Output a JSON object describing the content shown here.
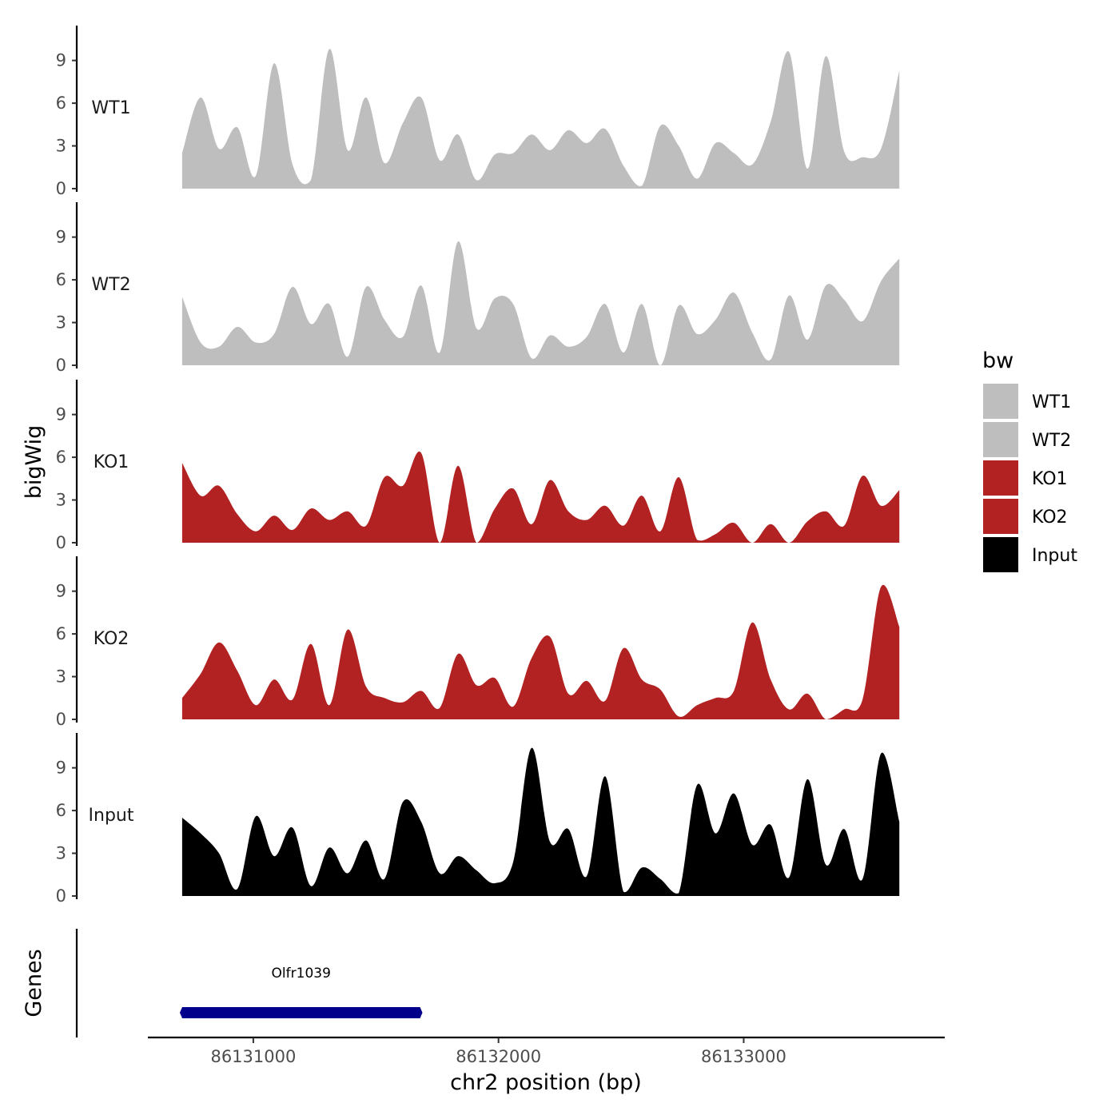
{
  "chart_data": {
    "type": "area",
    "chromosome": "chr2",
    "x": [
      86130710,
      86130785,
      86130860,
      86130935,
      86131010,
      86131085,
      86131160,
      86131235,
      86131310,
      86131385,
      86131460,
      86131535,
      86131610,
      86131685,
      86131760,
      86131835,
      86131910,
      86131985,
      86132060,
      86132135,
      86132210,
      86132285,
      86132360,
      86132435,
      86132510,
      86132585,
      86132660,
      86132735,
      86132810,
      86132885,
      86132960,
      86133035,
      86133110,
      86133185,
      86133260,
      86133335,
      86133410,
      86133485,
      86133560,
      86133635
    ],
    "series": [
      {
        "name": "WT1",
        "color": "#BEBEBE",
        "values": [
          2.5,
          6.4,
          2.8,
          4.3,
          0.9,
          8.8,
          1.7,
          0.6,
          9.8,
          2.7,
          6.4,
          1.8,
          4.6,
          6.4,
          2.0,
          3.8,
          0.6,
          2.4,
          2.5,
          3.8,
          2.7,
          4.1,
          3.2,
          4.2,
          1.6,
          0.2,
          4.4,
          3.0,
          0.7,
          3.2,
          2.5,
          1.7,
          4.7,
          9.6,
          1.4,
          9.3,
          2.6,
          2.2,
          2.8,
          8.3
        ]
      },
      {
        "name": "WT2",
        "color": "#BEBEBE",
        "values": [
          4.8,
          1.6,
          1.3,
          2.7,
          1.6,
          2.2,
          5.5,
          2.9,
          4.3,
          0.6,
          5.5,
          3.2,
          2.0,
          5.6,
          0.9,
          8.7,
          2.6,
          4.7,
          4.3,
          0.5,
          2.1,
          1.3,
          2.0,
          4.3,
          0.9,
          4.3,
          0.0,
          4.2,
          2.2,
          3.2,
          5.1,
          2.3,
          0.4,
          4.9,
          1.8,
          5.6,
          4.6,
          3.1,
          5.9,
          7.5
        ]
      },
      {
        "name": "KO1",
        "color": "#B22222",
        "values": [
          5.6,
          3.3,
          4.0,
          2.0,
          0.8,
          1.9,
          0.9,
          2.4,
          1.6,
          2.2,
          1.2,
          4.6,
          4.0,
          6.3,
          0.0,
          5.4,
          0.0,
          2.4,
          3.8,
          1.3,
          4.4,
          2.2,
          1.6,
          2.6,
          1.2,
          3.3,
          0.8,
          4.6,
          0.2,
          0.6,
          1.4,
          0.0,
          1.3,
          0.0,
          1.5,
          2.2,
          1.2,
          4.7,
          2.6,
          3.7
        ]
      },
      {
        "name": "KO2",
        "color": "#B22222",
        "values": [
          1.5,
          3.2,
          5.4,
          3.4,
          1.0,
          2.8,
          1.4,
          5.3,
          1.0,
          6.3,
          2.3,
          1.5,
          1.2,
          2.0,
          0.8,
          4.6,
          2.4,
          2.9,
          0.9,
          4.3,
          5.8,
          1.8,
          2.7,
          1.3,
          5.0,
          2.8,
          2.1,
          0.2,
          1.0,
          1.5,
          2.0,
          6.8,
          2.8,
          0.7,
          1.8,
          0.0,
          0.7,
          1.4,
          9.3,
          6.5
        ]
      },
      {
        "name": "Input",
        "color": "#000000",
        "values": [
          5.5,
          4.4,
          3.0,
          0.5,
          5.6,
          2.8,
          4.8,
          0.7,
          3.4,
          1.6,
          3.9,
          1.2,
          6.6,
          5.2,
          1.6,
          2.8,
          1.8,
          0.9,
          2.4,
          10.4,
          3.8,
          4.7,
          1.4,
          8.4,
          0.3,
          2.0,
          1.2,
          0.2,
          7.8,
          4.4,
          7.2,
          3.6,
          5.0,
          1.3,
          8.2,
          2.2,
          4.7,
          1.2,
          10.0,
          5.2
        ]
      }
    ],
    "ylabel": "bigWig",
    "ylim": [
      0,
      11
    ],
    "yticks": [
      0,
      3,
      6,
      9
    ],
    "xlabel": "chr2 position (bp)",
    "xticks": [
      86131000,
      86132000,
      86133000
    ],
    "xtick_labels": [
      "86131000",
      "86132000",
      "86133000"
    ],
    "xlim": [
      86130570,
      86133820
    ],
    "legend": {
      "title": "bw",
      "position": "right",
      "entries": [
        {
          "label": "WT1",
          "color": "#BEBEBE"
        },
        {
          "label": "WT2",
          "color": "#BEBEBE"
        },
        {
          "label": "KO1",
          "color": "#B22222"
        },
        {
          "label": "KO2",
          "color": "#B22222"
        },
        {
          "label": "Input",
          "color": "#000000"
        }
      ]
    },
    "genes_track": {
      "label": "Genes",
      "genes": [
        {
          "name": "Olfr1039",
          "start": 86130710,
          "end": 86131680,
          "color": "#00008B"
        }
      ]
    }
  }
}
